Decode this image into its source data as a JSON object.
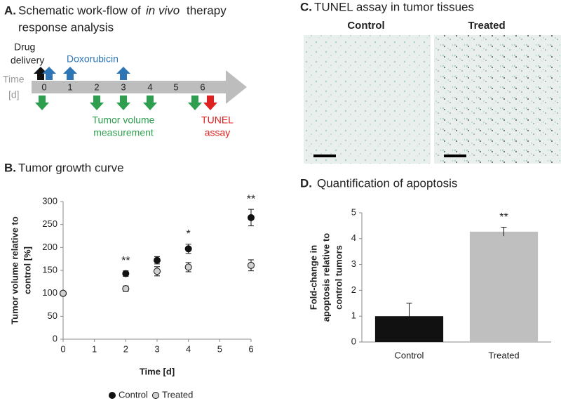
{
  "panel_a": {
    "label": "A.",
    "title_parts": [
      "Schematic work-flow of",
      "in vivo",
      "therapy"
    ],
    "title_line2": "response analysis",
    "time_label": "Time",
    "time_unit": "[d]",
    "days": [
      "0",
      "1",
      "2",
      "3",
      "4",
      "5",
      "6"
    ],
    "drug_delivery": [
      "Drug",
      "delivery"
    ],
    "doxorubicin": "Doxorubicin",
    "tumor_volume": [
      "Tumor volume",
      "measurement"
    ],
    "tunel": [
      "TUNEL",
      "assay"
    ]
  },
  "panel_c": {
    "label": "C.",
    "title": "TUNEL assay in tumor tissues",
    "groups": [
      "Control",
      "Treated"
    ]
  },
  "chart_data": [
    {
      "type": "scatter",
      "label": "B.",
      "title": "Tumor growth curve",
      "x_label": "Time [d]",
      "y_label": [
        "Tumor volume relative to",
        "control [%]"
      ],
      "x": [
        0,
        2,
        3,
        4,
        6
      ],
      "xlim": [
        0,
        6
      ],
      "xticks": [
        0,
        1,
        2,
        3,
        4,
        5,
        6
      ],
      "ylim": [
        0,
        300
      ],
      "yticks": [
        0,
        50,
        100,
        150,
        200,
        250,
        300
      ],
      "series": [
        {
          "name": "Control",
          "color": "#111111",
          "values": [
            100,
            143,
            172,
            197,
            265
          ],
          "errors": [
            null,
            6,
            8,
            10,
            18
          ]
        },
        {
          "name": "Treated",
          "color": "#d0d0d0",
          "values": [
            100,
            110,
            148,
            157,
            161
          ],
          "errors": [
            null,
            6,
            10,
            10,
            12
          ]
        }
      ],
      "annotations": [
        {
          "x": 2,
          "text": "**"
        },
        {
          "x": 4,
          "text": "*"
        },
        {
          "x": 6,
          "text": "**"
        }
      ],
      "legend": "bottom"
    },
    {
      "type": "bar",
      "label": "D.",
      "title": "Quantification of apoptosis",
      "y_label": [
        "Fold-change in",
        "apoptosis relative to",
        "control tumors"
      ],
      "categories": [
        "Control",
        "Treated"
      ],
      "values": [
        1,
        4.27
      ],
      "errors": [
        0.5,
        0.17
      ],
      "colors": [
        "#111111",
        "#bfbfbf"
      ],
      "ylim": [
        0,
        5
      ],
      "yticks": [
        0,
        1,
        2,
        3,
        4,
        5
      ],
      "annotations": [
        {
          "category": 1,
          "text": "**"
        }
      ]
    }
  ]
}
